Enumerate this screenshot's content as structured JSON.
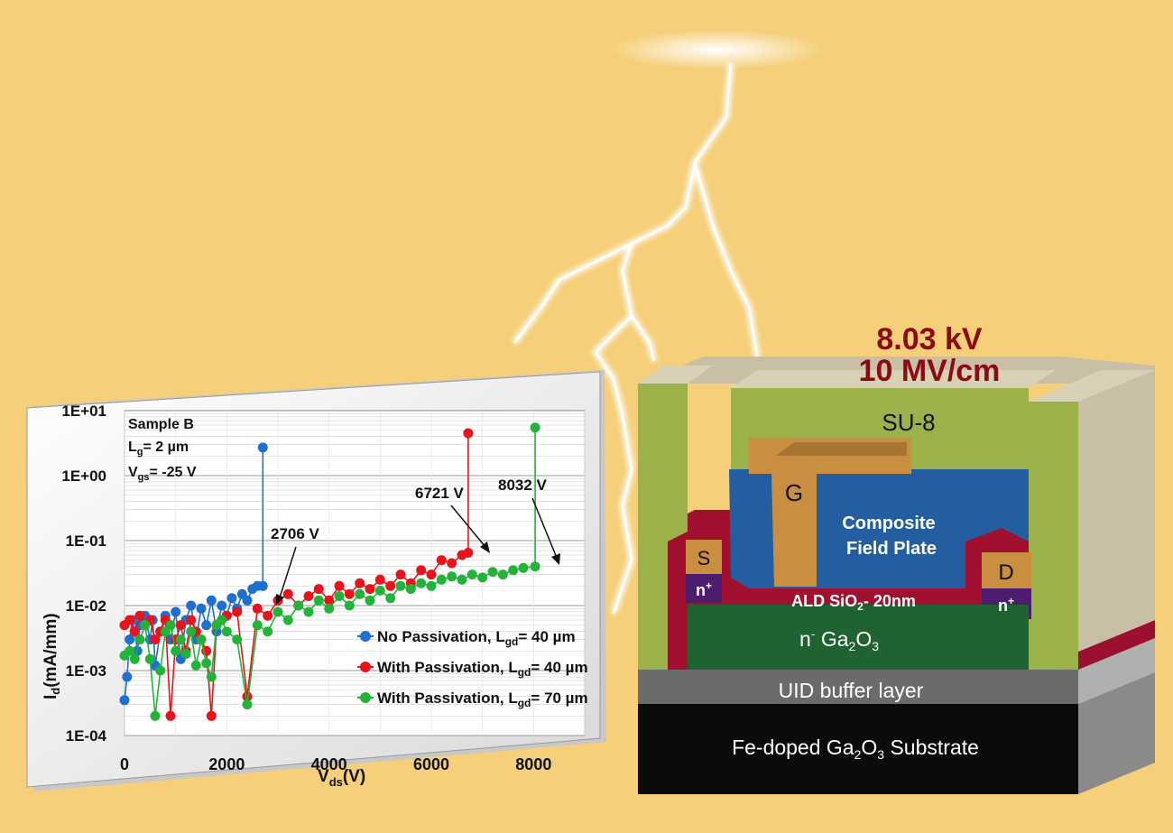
{
  "colors": {
    "background": "#f5cf79",
    "no_passivation": "#1f6fd1",
    "with_passivation_40": "#e8141b",
    "with_passivation_70": "#24b33a",
    "headline": "#8b0a14"
  },
  "headline": {
    "voltage": "8.03 kV",
    "field": "10 MV/cm"
  },
  "device": {
    "su8": "SU-8",
    "gate": "G",
    "field_plate_line1": "Composite",
    "field_plate_line2": "Field Plate",
    "source": "S",
    "drain": "D",
    "n_plus": "n",
    "n_plus_sup": "+",
    "oxide_main": "ALD SiO",
    "oxide_sub": "2",
    "oxide_rest": "- 20nm",
    "channel_n": "n",
    "channel_sup": "-",
    "channel_ga": " Ga",
    "channel_sub1": "2",
    "channel_o": "O",
    "channel_sub2": "3",
    "buffer": "UID buffer layer",
    "substrate_a": "Fe-doped Ga",
    "substrate_sub1": "2",
    "substrate_b": "O",
    "substrate_sub2": "3",
    "substrate_c": " Substrate"
  },
  "chart_data": {
    "type": "scatter",
    "xlabel": "V",
    "xlabel_sub": "ds",
    "xlabel_unit": "(V)",
    "ylabel": "I",
    "ylabel_sub": "d",
    "ylabel_unit": "(mA/mm)",
    "y_scale": "log",
    "xlim": [
      0,
      9000
    ],
    "ylim": [
      0.0001,
      10
    ],
    "x_ticks": [
      "0",
      "2000",
      "4000",
      "6000",
      "8000"
    ],
    "y_ticks": [
      "1E+01",
      "1E+00",
      "1E-01",
      "1E-02",
      "1E-03",
      "1E-04"
    ],
    "grid": true,
    "legend_position": "bottom-right",
    "info": {
      "sample": "Sample B",
      "lg": "= 2 µm",
      "vgs": "= -25 V"
    },
    "annotations": [
      "2706 V",
      "6721 V",
      "8032 V"
    ],
    "series": [
      {
        "name": "No Passivation,   L",
        "name_sub": "gd",
        "name_tail": "= 40 µm",
        "breakdown_v": 2706,
        "points": [
          [
            0,
            0.00035
          ],
          [
            50,
            0.0008
          ],
          [
            100,
            0.003
          ],
          [
            150,
            0.006
          ],
          [
            200,
            0.004
          ],
          [
            250,
            0.002
          ],
          [
            300,
            0.005
          ],
          [
            400,
            0.007
          ],
          [
            500,
            0.003
          ],
          [
            550,
            0.006
          ],
          [
            600,
            0.0012
          ],
          [
            700,
            0.004
          ],
          [
            800,
            0.007
          ],
          [
            900,
            0.003
          ],
          [
            1000,
            0.008
          ],
          [
            1100,
            0.0015
          ],
          [
            1200,
            0.006
          ],
          [
            1300,
            0.01
          ],
          [
            1400,
            0.003
          ],
          [
            1500,
            0.009
          ],
          [
            1600,
            0.005
          ],
          [
            1700,
            0.012
          ],
          [
            1800,
            0.004
          ],
          [
            1900,
            0.01
          ],
          [
            2000,
            0.007
          ],
          [
            2100,
            0.013
          ],
          [
            2200,
            0.009
          ],
          [
            2300,
            0.015
          ],
          [
            2400,
            0.012
          ],
          [
            2500,
            0.018
          ],
          [
            2600,
            0.02
          ],
          [
            2706,
            0.02
          ],
          [
            2706,
            2.7
          ]
        ]
      },
      {
        "name": "With Passivation, L",
        "name_sub": "gd",
        "name_tail": "= 40 µm",
        "breakdown_v": 6721,
        "points": [
          [
            0,
            0.005
          ],
          [
            100,
            0.006
          ],
          [
            200,
            0.004
          ],
          [
            300,
            0.007
          ],
          [
            400,
            0.005
          ],
          [
            500,
            0.006
          ],
          [
            600,
            0.003
          ],
          [
            700,
            0.004
          ],
          [
            800,
            0.006
          ],
          [
            900,
            0.0002
          ],
          [
            1000,
            0.003
          ],
          [
            1100,
            0.005
          ],
          [
            1200,
            0.002
          ],
          [
            1300,
            0.006
          ],
          [
            1400,
            0.004
          ],
          [
            1500,
            0.003
          ],
          [
            1600,
            0.002
          ],
          [
            1700,
            0.0002
          ],
          [
            1800,
            0.005
          ],
          [
            1900,
            0.006
          ],
          [
            2000,
            0.007
          ],
          [
            2200,
            0.008
          ],
          [
            2400,
            0.0004
          ],
          [
            2600,
            0.009
          ],
          [
            2800,
            0.007
          ],
          [
            3000,
            0.012
          ],
          [
            3200,
            0.015
          ],
          [
            3400,
            0.01
          ],
          [
            3600,
            0.014
          ],
          [
            3800,
            0.018
          ],
          [
            4000,
            0.012
          ],
          [
            4200,
            0.02
          ],
          [
            4400,
            0.015
          ],
          [
            4600,
            0.022
          ],
          [
            4800,
            0.018
          ],
          [
            5000,
            0.025
          ],
          [
            5200,
            0.02
          ],
          [
            5400,
            0.03
          ],
          [
            5600,
            0.022
          ],
          [
            5800,
            0.035
          ],
          [
            6000,
            0.03
          ],
          [
            6200,
            0.05
          ],
          [
            6400,
            0.045
          ],
          [
            6600,
            0.06
          ],
          [
            6721,
            0.065
          ],
          [
            6721,
            4.5
          ]
        ]
      },
      {
        "name": "With Passivation, L",
        "name_sub": "gd",
        "name_tail": "= 70 µm",
        "breakdown_v": 8032,
        "points": [
          [
            0,
            0.0017
          ],
          [
            100,
            0.002
          ],
          [
            200,
            0.0015
          ],
          [
            300,
            0.003
          ],
          [
            400,
            0.005
          ],
          [
            500,
            0.0015
          ],
          [
            600,
            0.0002
          ],
          [
            700,
            0.001
          ],
          [
            800,
            0.004
          ],
          [
            900,
            0.005
          ],
          [
            1000,
            0.002
          ],
          [
            1100,
            0.003
          ],
          [
            1200,
            0.0018
          ],
          [
            1300,
            0.004
          ],
          [
            1400,
            0.0012
          ],
          [
            1500,
            0.003
          ],
          [
            1600,
            0.0013
          ],
          [
            1700,
            0.0008
          ],
          [
            1800,
            0.005
          ],
          [
            1900,
            0.006
          ],
          [
            2000,
            0.004
          ],
          [
            2200,
            0.003
          ],
          [
            2400,
            0.0003
          ],
          [
            2600,
            0.005
          ],
          [
            2800,
            0.004
          ],
          [
            3000,
            0.008
          ],
          [
            3200,
            0.006
          ],
          [
            3400,
            0.01
          ],
          [
            3600,
            0.008
          ],
          [
            3800,
            0.012
          ],
          [
            4000,
            0.009
          ],
          [
            4200,
            0.014
          ],
          [
            4400,
            0.01
          ],
          [
            4600,
            0.015
          ],
          [
            4800,
            0.012
          ],
          [
            5000,
            0.017
          ],
          [
            5200,
            0.013
          ],
          [
            5400,
            0.02
          ],
          [
            5600,
            0.018
          ],
          [
            5800,
            0.022
          ],
          [
            6000,
            0.02
          ],
          [
            6200,
            0.025
          ],
          [
            6400,
            0.028
          ],
          [
            6600,
            0.025
          ],
          [
            6800,
            0.03
          ],
          [
            7000,
            0.027
          ],
          [
            7200,
            0.033
          ],
          [
            7400,
            0.03
          ],
          [
            7600,
            0.035
          ],
          [
            7800,
            0.038
          ],
          [
            8032,
            0.04
          ],
          [
            8032,
            5.5
          ]
        ]
      }
    ]
  }
}
